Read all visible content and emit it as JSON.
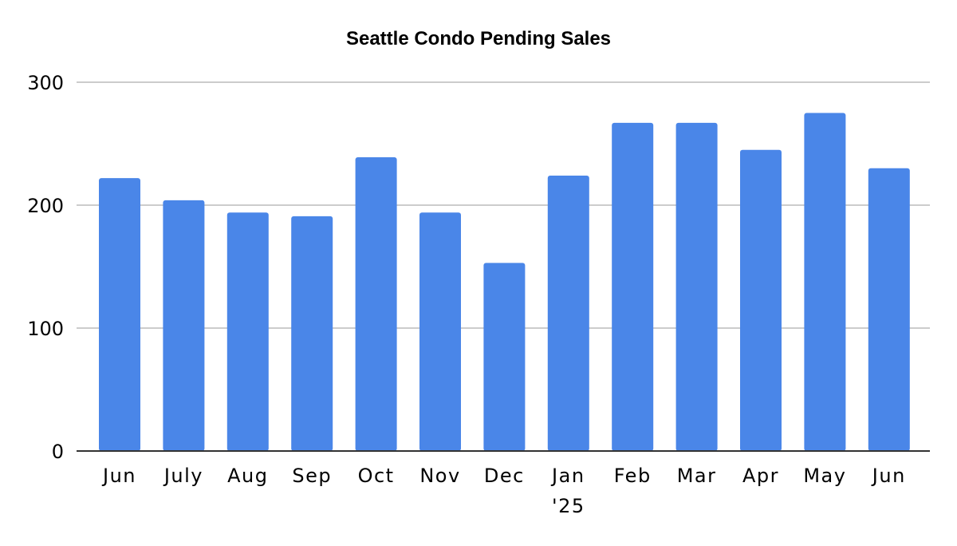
{
  "chart_data": {
    "type": "bar",
    "title": "Seattle Condo Pending Sales",
    "xlabel": "",
    "ylabel": "",
    "categories": [
      "Jun",
      "July",
      "Aug",
      "Sep",
      "Oct",
      "Nov",
      "Dec",
      "Jan '25",
      "Feb",
      "Mar",
      "Apr",
      "May",
      "Jun"
    ],
    "category_lines": [
      [
        "Jun"
      ],
      [
        "July"
      ],
      [
        "Aug"
      ],
      [
        "Sep"
      ],
      [
        "Oct"
      ],
      [
        "Nov"
      ],
      [
        "Dec"
      ],
      [
        "Jan",
        "'25"
      ],
      [
        "Feb"
      ],
      [
        "Mar"
      ],
      [
        "Apr"
      ],
      [
        "May"
      ],
      [
        "Jun"
      ]
    ],
    "values": [
      222,
      204,
      194,
      191,
      239,
      194,
      153,
      224,
      267,
      267,
      245,
      275,
      230
    ],
    "ylim": [
      0,
      300
    ],
    "yticks": [
      0,
      100,
      200,
      300
    ],
    "grid": true,
    "legend": "none",
    "bar_color": "#4a86e8"
  }
}
